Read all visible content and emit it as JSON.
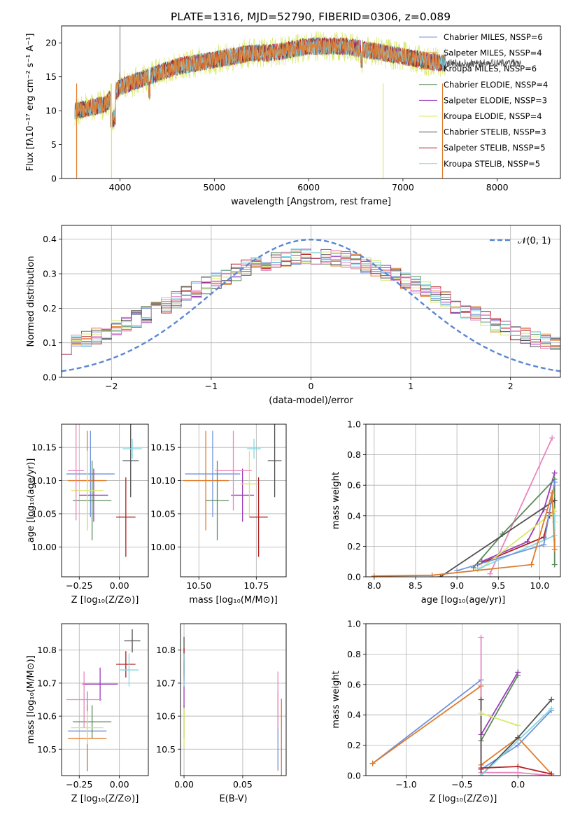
{
  "figure": {
    "title": "PLATE=1316, MJD=52790, FIBERID=0306, z=0.089"
  },
  "series_colors": [
    "#6f93dc",
    "#e07b2b",
    "#5a8a5a",
    "#9b3dbb",
    "#d8e86a",
    "#505050",
    "#b22222",
    "#84d8e4",
    "#e886be"
  ],
  "chart_data": [
    {
      "id": "spectrum",
      "type": "line",
      "xlabel": "wavelength [Angstrom, rest frame]",
      "ylabel": "Flux [fλ10⁻¹⁷ erg cm⁻² s⁻¹ A⁻¹]",
      "xlim": [
        3380,
        8670
      ],
      "ylim": [
        0,
        22.5
      ],
      "xticks": [
        4000,
        5000,
        6000,
        7000,
        8000
      ],
      "yticks": [
        0,
        5,
        10,
        15,
        20
      ],
      "grid": false,
      "legend_position": "top-right",
      "series": [
        {
          "name": "Chabrier MILES, NSSP=6",
          "color": "#6f93dc"
        },
        {
          "name": "Salpeter MILES, NSSP=4",
          "color": "#e07b2b"
        },
        {
          "name": "Kroupa MILES, NSSP=6",
          "color": "#e07b2b"
        },
        {
          "name": "Chabrier ELODIE, NSSP=4",
          "color": "#5a8a5a"
        },
        {
          "name": "Salpeter ELODIE, NSSP=3",
          "color": "#9b3dbb"
        },
        {
          "name": "Kroupa ELODIE, NSSP=4",
          "color": "#d8e86a"
        },
        {
          "name": "Chabrier STELIB, NSSP=3",
          "color": "#505050"
        },
        {
          "name": "Salpeter STELIB, NSSP=5",
          "color": "#b22222"
        },
        {
          "name": "Kroupa STELIB, NSSP=5",
          "color": "#84d8e4"
        }
      ],
      "continuum": {
        "x": [
          3550,
          3700,
          3850,
          4000,
          4200,
          4400,
          4600,
          4800,
          5000,
          5200,
          5400,
          5600,
          5800,
          6000,
          6200,
          6400,
          6600,
          6800,
          7000,
          7200,
          7400,
          7600,
          7800,
          8000,
          8200
        ],
        "y": [
          10,
          10.5,
          11,
          13.5,
          14.5,
          15.5,
          16.5,
          17,
          17.5,
          18,
          18.5,
          18.5,
          19,
          19.5,
          19.5,
          19.5,
          19,
          18.5,
          18,
          17.5,
          17,
          17,
          17,
          17,
          17
        ]
      }
    },
    {
      "id": "residuals",
      "type": "line",
      "xlabel": "(data-model)/error",
      "ylabel": "Normed distribution",
      "xlim": [
        -2.5,
        2.5
      ],
      "ylim": [
        0,
        0.44
      ],
      "xticks": [
        -2,
        -1,
        0,
        1,
        2
      ],
      "yticks": [
        0.0,
        0.1,
        0.2,
        0.3,
        0.4
      ],
      "grid": true,
      "legend_position": "top-right",
      "gaussian": {
        "label": "𝒩(0, 1)",
        "color": "#5b87d2",
        "sigma": 1
      }
    },
    {
      "id": "age-vs-Z",
      "type": "scatter",
      "xlabel": "Z [log₁₀(Z/Z⊙)]",
      "ylabel": "age  [log₁₀(age/yr)]",
      "xlim": [
        -0.36,
        0.18
      ],
      "ylim": [
        9.955,
        10.185
      ],
      "xticks": [
        -0.25,
        0.0
      ],
      "yticks": [
        10.0,
        10.05,
        10.1,
        10.15
      ],
      "grid": true,
      "points": [
        {
          "x": -0.18,
          "y": 10.11,
          "xerr": 0.15,
          "yerr": 0.065,
          "color": "#6f93dc"
        },
        {
          "x": -0.2,
          "y": 10.1,
          "xerr": 0.12,
          "yerr": 0.075,
          "color": "#e07b2b"
        },
        {
          "x": -0.17,
          "y": 10.07,
          "xerr": 0.12,
          "yerr": 0.06,
          "color": "#5a8a5a"
        },
        {
          "x": -0.16,
          "y": 10.078,
          "xerr": 0.09,
          "yerr": 0.04,
          "color": "#9b3dbb"
        },
        {
          "x": -0.2,
          "y": 10.085,
          "xerr": 0.1,
          "yerr": 0.06,
          "color": "#d8e86a"
        },
        {
          "x": 0.07,
          "y": 10.13,
          "xerr": 0.05,
          "yerr": 0.055,
          "color": "#505050"
        },
        {
          "x": 0.04,
          "y": 10.045,
          "xerr": 0.06,
          "yerr": 0.06,
          "color": "#b22222"
        },
        {
          "x": 0.08,
          "y": 10.148,
          "xerr": 0.06,
          "yerr": 0.015,
          "color": "#84d8e4"
        },
        {
          "x": -0.27,
          "y": 10.115,
          "xerr": 0.05,
          "yerr": 0.075,
          "color": "#e886be"
        }
      ]
    },
    {
      "id": "age-vs-mass",
      "type": "scatter",
      "xlabel": "mass [log₁₀(M/M⊙)]",
      "ylabel": "",
      "xlim": [
        10.42,
        10.88
      ],
      "ylim": [
        9.955,
        10.185
      ],
      "xticks": [
        10.5,
        10.75
      ],
      "yticks": [
        10.0,
        10.05,
        10.1,
        10.15
      ],
      "grid": true,
      "points": [
        {
          "x": 10.56,
          "y": 10.11,
          "xerr": 0.12,
          "yerr": 0.065,
          "color": "#6f93dc"
        },
        {
          "x": 10.53,
          "y": 10.1,
          "xerr": 0.1,
          "yerr": 0.075,
          "color": "#e07b2b"
        },
        {
          "x": 10.58,
          "y": 10.07,
          "xerr": 0.05,
          "yerr": 0.06,
          "color": "#5a8a5a"
        },
        {
          "x": 10.69,
          "y": 10.078,
          "xerr": 0.05,
          "yerr": 0.04,
          "color": "#9b3dbb"
        },
        {
          "x": 10.72,
          "y": 10.095,
          "xerr": 0.04,
          "yerr": 0.05,
          "color": "#d8e86a"
        },
        {
          "x": 10.83,
          "y": 10.13,
          "xerr": 0.03,
          "yerr": 0.055,
          "color": "#505050"
        },
        {
          "x": 10.76,
          "y": 10.045,
          "xerr": 0.04,
          "yerr": 0.06,
          "color": "#b22222"
        },
        {
          "x": 10.74,
          "y": 10.148,
          "xerr": 0.03,
          "yerr": 0.015,
          "color": "#84d8e4"
        },
        {
          "x": 10.65,
          "y": 10.115,
          "xerr": 0.08,
          "yerr": 0.06,
          "color": "#e886be"
        }
      ]
    },
    {
      "id": "massweight-vs-age",
      "type": "line",
      "xlabel": "age  [log₁₀(age/yr)]",
      "ylabel": "mass weight",
      "xlim": [
        7.9,
        10.25
      ],
      "ylim": [
        0,
        1
      ],
      "xticks": [
        8.0,
        8.5,
        9.0,
        9.5,
        10.0
      ],
      "yticks": [
        0.0,
        0.2,
        0.4,
        0.6,
        0.8,
        1.0
      ],
      "grid": true,
      "series": [
        {
          "color": "#e886be",
          "x": [
            9.4,
            10.15
          ],
          "y": [
            0.02,
            0.91
          ]
        },
        {
          "color": "#9b3dbb",
          "x": [
            9.3,
            9.85,
            10.05,
            10.18
          ],
          "y": [
            0.1,
            0.23,
            0.44,
            0.68
          ]
        },
        {
          "color": "#5a8a5a",
          "x": [
            9.2,
            9.55,
            10.18,
            10.18
          ],
          "y": [
            0.06,
            0.28,
            0.64,
            0.08
          ]
        },
        {
          "color": "#505050",
          "x": [
            8.8,
            10.18,
            10.15
          ],
          "y": [
            0.0,
            0.5,
            0.5
          ]
        },
        {
          "color": "#b22222",
          "x": [
            9.25,
            10.05,
            10.12,
            10.12
          ],
          "y": [
            0.08,
            0.26,
            0.42,
            0.4
          ]
        },
        {
          "color": "#d8e86a",
          "x": [
            9.3,
            10.18,
            10.18
          ],
          "y": [
            0.06,
            0.43,
            0.36
          ]
        },
        {
          "color": "#84d8e4",
          "x": [
            9.25,
            10.18,
            10.18
          ],
          "y": [
            0.05,
            0.27,
            0.4
          ]
        },
        {
          "color": "#6f93dc",
          "x": [
            9.0,
            10.05,
            10.18
          ],
          "y": [
            0.04,
            0.21,
            0.62
          ]
        },
        {
          "color": "#e07b2b",
          "x": [
            8.0,
            8.7,
            9.9,
            10.15,
            10.18
          ],
          "y": [
            0.005,
            0.01,
            0.08,
            0.55,
            0.18
          ]
        }
      ]
    },
    {
      "id": "mass-vs-Z",
      "type": "scatter",
      "xlabel": "Z [log₁₀(Z/Z⊙)]",
      "ylabel": "mass [log₁₀(M/M⊙)]",
      "xlim": [
        -0.36,
        0.18
      ],
      "ylim": [
        10.42,
        10.88
      ],
      "xticks": [
        -0.25,
        0.0
      ],
      "yticks": [
        10.5,
        10.6,
        10.7,
        10.8
      ],
      "grid": true,
      "points": [
        {
          "x": -0.2,
          "y": 10.555,
          "xerr": 0.12,
          "yerr": 0.12,
          "color": "#6f93dc"
        },
        {
          "x": -0.2,
          "y": 10.533,
          "xerr": 0.12,
          "yerr": 0.1,
          "color": "#e07b2b"
        },
        {
          "x": -0.17,
          "y": 10.583,
          "xerr": 0.12,
          "yerr": 0.05,
          "color": "#5a8a5a"
        },
        {
          "x": -0.12,
          "y": 10.697,
          "xerr": 0.11,
          "yerr": 0.05,
          "color": "#9b3dbb"
        },
        {
          "x": -0.2,
          "y": 10.565,
          "xerr": 0.1,
          "yerr": 0.05,
          "color": "#d8e86a"
        },
        {
          "x": 0.08,
          "y": 10.828,
          "xerr": 0.05,
          "yerr": 0.035,
          "color": "#505050"
        },
        {
          "x": 0.04,
          "y": 10.757,
          "xerr": 0.06,
          "yerr": 0.04,
          "color": "#b22222"
        },
        {
          "x": 0.06,
          "y": 10.74,
          "xerr": 0.06,
          "yerr": 0.05,
          "color": "#84d8e4"
        },
        {
          "x": -0.22,
          "y": 10.65,
          "xerr": 0.11,
          "yerr": 0.085,
          "color": "#e886be"
        }
      ]
    },
    {
      "id": "mass-vs-EBV",
      "type": "scatter",
      "xlabel": "E(B-V)",
      "ylabel": "",
      "xlim": [
        -0.003,
        0.087
      ],
      "ylim": [
        10.42,
        10.88
      ],
      "xticks": [
        0.0,
        0.05
      ],
      "yticks": [
        10.5,
        10.6,
        10.7,
        10.8
      ],
      "grid": true,
      "points": [
        {
          "x": 0.08,
          "y": 10.555,
          "xerr": 0,
          "yerr": 0.12,
          "color": "#6f93dc"
        },
        {
          "x": 0.083,
          "y": 10.533,
          "xerr": 0,
          "yerr": 0.12,
          "color": "#e07b2b"
        },
        {
          "x": 0.0,
          "y": 10.583,
          "xerr": 0,
          "yerr": 0.05,
          "color": "#5a8a5a"
        },
        {
          "x": 0.0,
          "y": 10.697,
          "xerr": 0,
          "yerr": 0.07,
          "color": "#9b3dbb"
        },
        {
          "x": 0.0,
          "y": 10.565,
          "xerr": 0,
          "yerr": 0.06,
          "color": "#d8e86a"
        },
        {
          "x": 0.0,
          "y": 10.78,
          "xerr": 0,
          "yerr": 0.06,
          "color": "#505050"
        },
        {
          "x": 0.0,
          "y": 10.757,
          "xerr": 0,
          "yerr": 0.05,
          "color": "#b22222"
        },
        {
          "x": 0.0,
          "y": 10.74,
          "xerr": 0,
          "yerr": 0.05,
          "color": "#84d8e4"
        },
        {
          "x": 0.08,
          "y": 10.65,
          "xerr": 0,
          "yerr": 0.085,
          "color": "#e886be"
        }
      ]
    },
    {
      "id": "massweight-vs-Z",
      "type": "line",
      "xlabel": "Z [log₁₀(Z/Z⊙)]",
      "ylabel": "mass weight",
      "xlim": [
        -1.36,
        0.38
      ],
      "ylim": [
        0,
        1
      ],
      "xticks": [
        -1.0,
        -0.5,
        0.0
      ],
      "yticks": [
        0.0,
        0.2,
        0.4,
        0.6,
        0.8,
        1.0
      ],
      "grid": true,
      "series": [
        {
          "color": "#6f93dc",
          "x": [
            -1.3,
            -0.33,
            -0.33,
            0.0,
            0.3
          ],
          "y": [
            0.08,
            0.63,
            0.04,
            0.2,
            0.43
          ]
        },
        {
          "color": "#e07b2b",
          "x": [
            -1.3,
            -0.33,
            -0.33,
            0.0,
            0.3
          ],
          "y": [
            0.08,
            0.59,
            0.07,
            0.25,
            0.01
          ]
        },
        {
          "color": "#e886be",
          "x": [
            -0.33,
            -0.33,
            0.0,
            0.3
          ],
          "y": [
            0.91,
            0.02,
            0.02,
            0.0
          ]
        },
        {
          "color": "#9b3dbb",
          "x": [
            -0.33,
            0.0
          ],
          "y": [
            0.27,
            0.68
          ]
        },
        {
          "color": "#5a8a5a",
          "x": [
            -0.33,
            0.0
          ],
          "y": [
            0.23,
            0.66
          ]
        },
        {
          "color": "#505050",
          "x": [
            -0.33,
            -0.33,
            0.0,
            0.3
          ],
          "y": [
            0.5,
            0.0,
            0.25,
            0.5
          ]
        },
        {
          "color": "#d8e86a",
          "x": [
            -0.33,
            0.0
          ],
          "y": [
            0.41,
            0.33
          ]
        },
        {
          "color": "#84d8e4",
          "x": [
            -0.33,
            0.3
          ],
          "y": [
            0.0,
            0.44
          ]
        },
        {
          "color": "#b22222",
          "x": [
            -0.33,
            0.0,
            0.3
          ],
          "y": [
            0.05,
            0.06,
            0.01
          ]
        }
      ]
    }
  ]
}
